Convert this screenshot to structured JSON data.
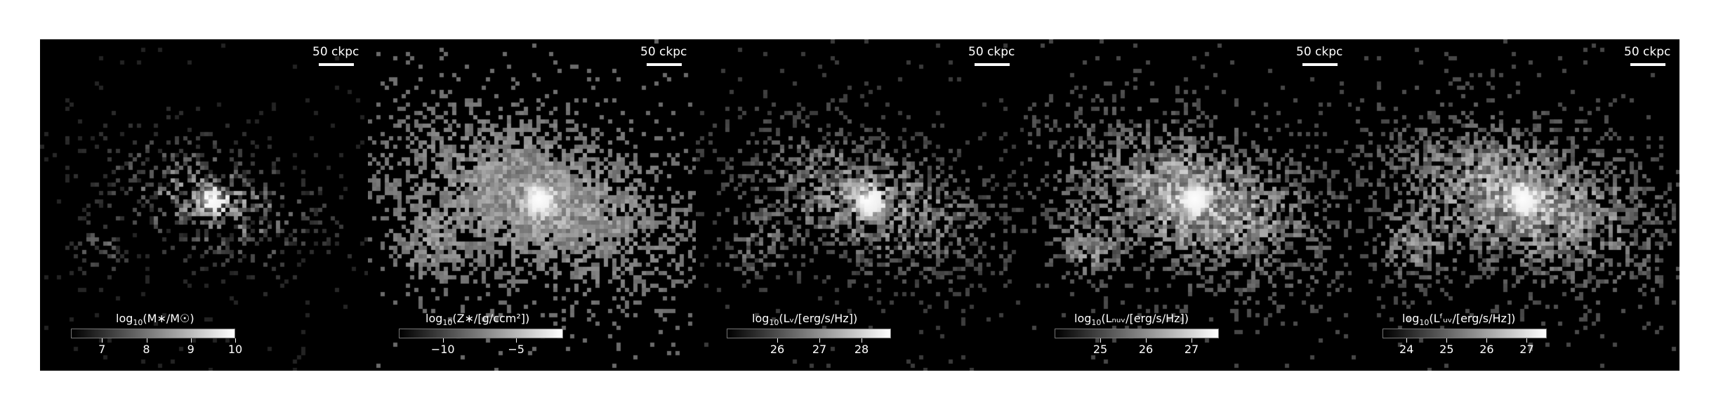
{
  "scale_label": "50 ckpc",
  "panels": [
    {
      "colorbar": {
        "label_pre": "log",
        "label_sub": "10",
        "label_post": "(M∗/M☉)",
        "ticks": [
          "7",
          "8",
          "9",
          "10"
        ],
        "min": 6.3,
        "max": 10.0,
        "tick_values": [
          7,
          8,
          9,
          10
        ]
      }
    },
    {
      "colorbar": {
        "label_pre": "log",
        "label_sub": "10",
        "label_post": "(Z∗/[g/ccm²])",
        "ticks": [
          "−10",
          "−5"
        ],
        "min": -13.0,
        "max": -1.8,
        "tick_values": [
          -10,
          -5
        ]
      }
    },
    {
      "colorbar": {
        "label_pre": "log",
        "label_sub": "10",
        "label_post": "(Lᵥ/[erg/s/Hz])",
        "ticks": [
          "26",
          "27",
          "28"
        ],
        "min": 24.8,
        "max": 28.7,
        "tick_values": [
          26,
          27,
          28
        ]
      }
    },
    {
      "colorbar": {
        "label_pre": "log",
        "label_sub": "10",
        "label_post": "(Lₙᵤᵥ/[erg/s/Hz])",
        "ticks": [
          "25",
          "26",
          "27"
        ],
        "min": 24.0,
        "max": 27.6,
        "tick_values": [
          25,
          26,
          27
        ]
      }
    },
    {
      "colorbar": {
        "label_pre": "log",
        "label_sub": "10",
        "label_post": "(Lᶠᵤᵥ/[erg/s/Hz])",
        "ticks": [
          "24",
          "25",
          "26",
          "27"
        ],
        "min": 23.4,
        "max": 27.5,
        "tick_values": [
          24,
          25,
          26,
          27
        ]
      }
    }
  ]
}
